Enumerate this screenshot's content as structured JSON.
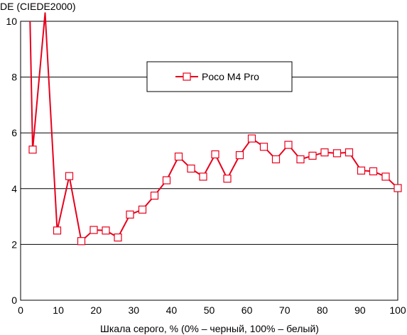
{
  "chart_data": {
    "type": "line",
    "title": "",
    "xlabel": "Шкала серого, % (0% – черный, 100% – белый)",
    "ylabel": "DE (CIEDE2000)",
    "xlim": [
      0,
      100
    ],
    "ylim": [
      0,
      10
    ],
    "xticks": [
      0,
      10,
      20,
      30,
      40,
      50,
      60,
      70,
      80,
      90,
      100
    ],
    "yticks": [
      0,
      2,
      4,
      6,
      8,
      10
    ],
    "grid": "horizontal",
    "legend_position": "top-center",
    "series": [
      {
        "name": "Poco M4 Pro",
        "color": "#e8001c",
        "marker": "square-open",
        "head": [
          [
            2.5,
            10.0
          ],
          [
            3.2,
            5.4
          ],
          [
            6.5,
            10.3
          ],
          [
            9.7,
            2.5
          ]
        ],
        "x": [
          3.2,
          9.7,
          12.9,
          16.1,
          19.4,
          22.6,
          25.8,
          29.0,
          32.3,
          35.5,
          38.7,
          41.9,
          45.2,
          48.4,
          51.6,
          54.8,
          58.1,
          61.3,
          64.5,
          67.7,
          71.0,
          74.2,
          77.4,
          80.6,
          83.9,
          87.1,
          90.3,
          93.5,
          96.8,
          100.0
        ],
        "values": [
          5.4,
          2.5,
          4.45,
          2.12,
          2.52,
          2.5,
          2.25,
          3.07,
          3.25,
          3.75,
          4.3,
          5.15,
          4.72,
          4.43,
          5.23,
          4.36,
          5.2,
          5.8,
          5.5,
          5.05,
          5.57,
          5.05,
          5.18,
          5.3,
          5.27,
          5.3,
          4.65,
          4.62,
          4.43,
          4.02
        ]
      }
    ]
  }
}
